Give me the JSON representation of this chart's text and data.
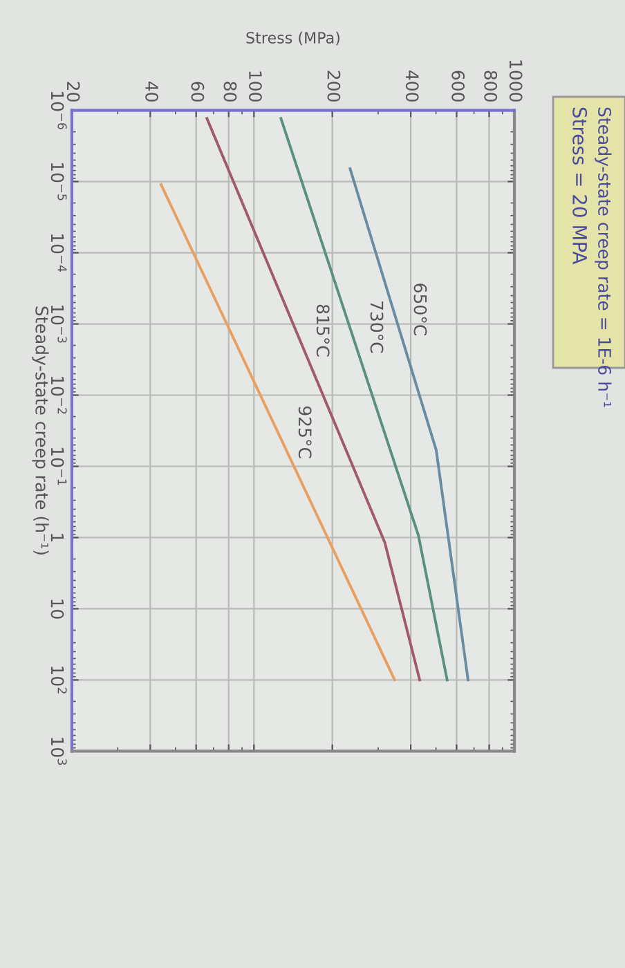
{
  "chart_data": {
    "type": "line",
    "title": "Steady-state creep rate = 1E-6 h⁻¹",
    "subtitle": "Stress = 20 MPA",
    "xlabel": "Stress (MPa)",
    "ylabel": "Steady-state creep rate (h⁻¹)",
    "log": "xy",
    "xlim": [
      20,
      1000
    ],
    "xticks": [
      20,
      40,
      60,
      80,
      100,
      200,
      400,
      600,
      800,
      1000
    ],
    "ylim": [
      1000,
      1e-06
    ],
    "yticks": [
      {
        "value": 1e-06,
        "label": "10$^{−6}$"
      },
      {
        "value": 1e-05,
        "label": "10$^{−5}$"
      },
      {
        "value": 0.0001,
        "label": "10$^{−4}$"
      },
      {
        "value": 0.001,
        "label": "10$^{−3}$"
      },
      {
        "value": 0.01,
        "label": "10$^{−2}$"
      },
      {
        "value": 0.1,
        "label": "10$^{−1}$"
      },
      1,
      10,
      {
        "value": 100,
        "label": "10$^{2}$"
      },
      {
        "value": 1000,
        "label": "10$^{3}$"
      }
    ],
    "grid": true,
    "series": [
      {
        "name": "650°C",
        "color": "#6a8ca0",
        "x": [
          234,
          501,
          664
        ],
        "values": [
          6.6e-06,
          0.059,
          100
        ]
      },
      {
        "name": "730°C",
        "color": "#5a9080",
        "x": [
          127,
          428,
          552
        ],
        "values": [
          1.3e-06,
          0.93,
          100
        ]
      },
      {
        "name": "815°C",
        "color": "#a05a6a",
        "x": [
          66,
          318,
          433
        ],
        "values": [
          1.3e-06,
          1.17,
          100
        ]
      },
      {
        "name": "925°C",
        "color": "#e8a060",
        "x": [
          44,
          347
        ],
        "values": [
          1.1e-05,
          100
        ]
      }
    ]
  }
}
